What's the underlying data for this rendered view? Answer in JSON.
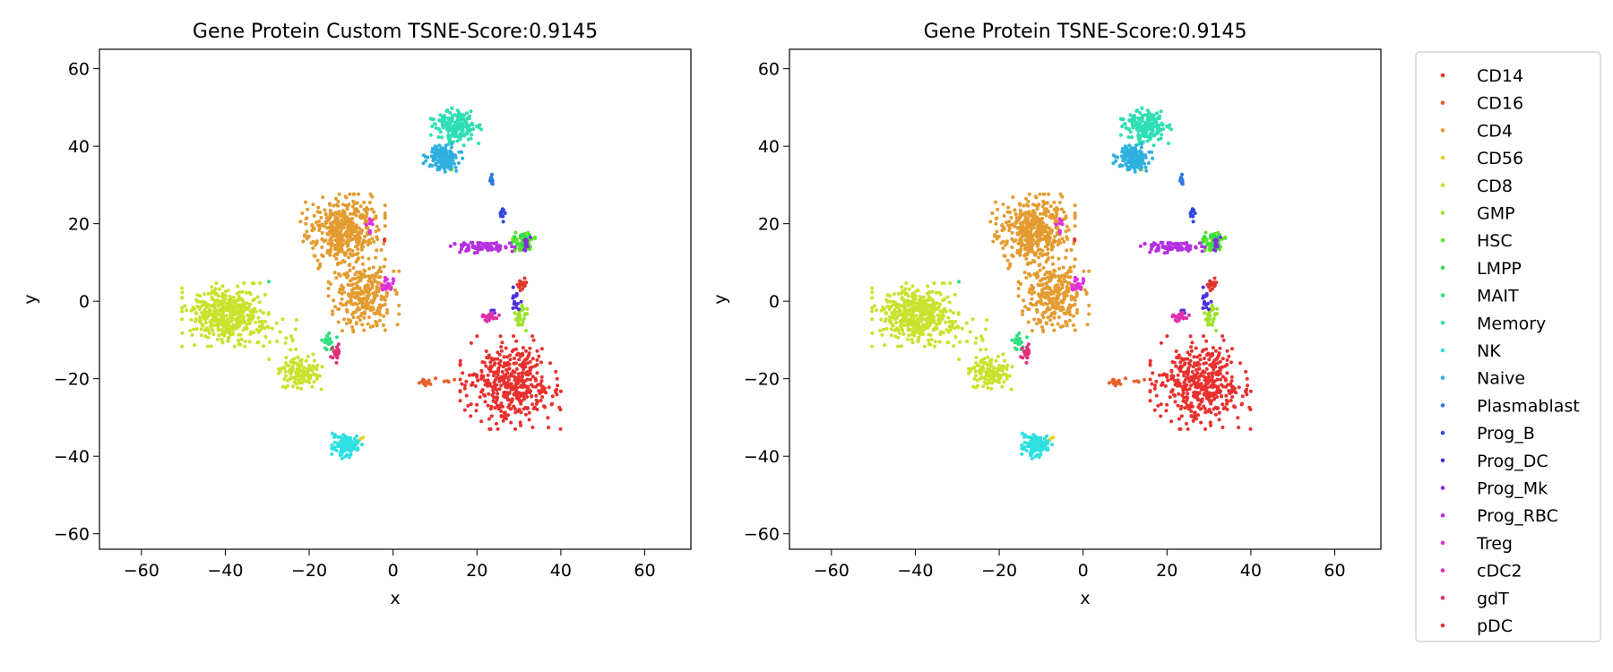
{
  "chart_data": [
    {
      "type": "scatter",
      "title": "Gene Protein Custom TSNE-Score:0.9145",
      "xlabel": "x",
      "ylabel": "y",
      "xlim": [
        -70,
        71
      ],
      "ylim": [
        -64,
        65
      ],
      "xticks": [
        -60,
        -40,
        -20,
        0,
        20,
        40,
        60
      ],
      "yticks": [
        -60,
        -40,
        -20,
        0,
        20,
        40,
        60
      ],
      "xtick_labels": [
        "−60",
        "−40",
        "−20",
        "0",
        "20",
        "40",
        "60"
      ],
      "ytick_labels": [
        "−60",
        "−40",
        "−20",
        "0",
        "20",
        "40",
        "60"
      ],
      "grid": false,
      "legend": "none"
    },
    {
      "type": "scatter",
      "title": "Gene Protein TSNE-Score:0.9145",
      "xlabel": "x",
      "ylabel": "y",
      "xlim": [
        -70,
        71
      ],
      "ylim": [
        -64,
        65
      ],
      "xticks": [
        -60,
        -40,
        -20,
        0,
        20,
        40,
        60
      ],
      "yticks": [
        -60,
        -40,
        -20,
        0,
        20,
        40,
        60
      ],
      "xtick_labels": [
        "−60",
        "−40",
        "−20",
        "0",
        "20",
        "40",
        "60"
      ],
      "ytick_labels": [
        "−60",
        "−40",
        "−20",
        "0",
        "20",
        "40",
        "60"
      ],
      "grid": false,
      "legend": "outside-right"
    }
  ],
  "series": [
    {
      "name": "CD14",
      "color": "#e8312f",
      "clusters": [
        {
          "cx": 28,
          "cy": -21,
          "sx": 5,
          "sy": 5,
          "n": 420
        },
        {
          "cx": 31,
          "cy": 4.5,
          "sx": 0.6,
          "sy": 0.6,
          "n": 8
        }
      ]
    },
    {
      "name": "CD16",
      "color": "#e6602e",
      "clusters": [
        {
          "cx": 8,
          "cy": -21,
          "sx": 0.8,
          "sy": 0.5,
          "n": 15
        },
        {
          "cx": 12,
          "cy": -20.5,
          "sx": 1.5,
          "sy": 0.4,
          "n": 5
        }
      ]
    },
    {
      "name": "CD4",
      "color": "#e39c31",
      "clusters": [
        {
          "cx": -12,
          "cy": 18,
          "sx": 4.2,
          "sy": 4,
          "n": 450
        },
        {
          "cx": -7,
          "cy": 1.5,
          "sx": 3.5,
          "sy": 4,
          "n": 300
        }
      ]
    },
    {
      "name": "CD56",
      "color": "#e3d32a",
      "clusters": [
        {
          "cx": -7.5,
          "cy": -35,
          "sx": 0.4,
          "sy": 0.4,
          "n": 3
        },
        {
          "cx": 14,
          "cy": 34,
          "sx": 0.4,
          "sy": 0.4,
          "n": 2
        }
      ]
    },
    {
      "name": "CD8",
      "color": "#c9e22d",
      "clusters": [
        {
          "cx": -40,
          "cy": -3.5,
          "sx": 4.3,
          "sy": 3.4,
          "n": 420
        },
        {
          "cx": -22,
          "cy": -18.5,
          "sx": 2.2,
          "sy": 2,
          "n": 130
        },
        {
          "cx": -28,
          "cy": -9,
          "sx": 3,
          "sy": 2.5,
          "n": 25
        }
      ]
    },
    {
      "name": "GMP",
      "color": "#9ee22e",
      "clusters": [
        {
          "cx": 30.5,
          "cy": -4,
          "sx": 0.8,
          "sy": 1.5,
          "n": 25
        }
      ]
    },
    {
      "name": "HSC",
      "color": "#60e02c",
      "clusters": [
        {
          "cx": 31,
          "cy": 15,
          "sx": 1.5,
          "sy": 1.2,
          "n": 60
        }
      ]
    },
    {
      "name": "LMPP",
      "color": "#2fdf4a",
      "clusters": [
        {
          "cx": 31,
          "cy": 16,
          "sx": 1.2,
          "sy": 1.2,
          "n": 20
        }
      ]
    },
    {
      "name": "MAIT",
      "color": "#2edf7f",
      "clusters": [
        {
          "cx": -15.5,
          "cy": -10.5,
          "sx": 0.9,
          "sy": 1.2,
          "n": 20
        },
        {
          "cx": -30,
          "cy": 5,
          "sx": 0.2,
          "sy": 0.2,
          "n": 1
        }
      ]
    },
    {
      "name": "Memory",
      "color": "#2fdfb3",
      "clusters": [
        {
          "cx": 15,
          "cy": 45,
          "sx": 2.5,
          "sy": 2,
          "n": 180
        }
      ]
    },
    {
      "name": "NK",
      "color": "#2fe0e1",
      "clusters": [
        {
          "cx": -11,
          "cy": -37,
          "sx": 1.5,
          "sy": 1.5,
          "n": 130
        }
      ]
    },
    {
      "name": "Naive",
      "color": "#2fb0df",
      "clusters": [
        {
          "cx": 12,
          "cy": 37,
          "sx": 2,
          "sy": 1.5,
          "n": 160
        }
      ]
    },
    {
      "name": "Plasmablast",
      "color": "#2f7be0",
      "clusters": [
        {
          "cx": 23.5,
          "cy": 31.5,
          "sx": 0.3,
          "sy": 0.8,
          "n": 12
        }
      ]
    },
    {
      "name": "Prog_B",
      "color": "#3047e0",
      "clusters": [
        {
          "cx": 26,
          "cy": 22.5,
          "sx": 0.3,
          "sy": 1,
          "n": 12
        }
      ]
    },
    {
      "name": "Prog_DC",
      "color": "#4b2fe0",
      "clusters": [
        {
          "cx": 29.5,
          "cy": 0,
          "sx": 0.6,
          "sy": 1.5,
          "n": 15
        },
        {
          "cx": 24,
          "cy": -3,
          "sx": 0.5,
          "sy": 0.5,
          "n": 5
        }
      ]
    },
    {
      "name": "Prog_Mk",
      "color": "#7f2fe0",
      "clusters": [
        {
          "cx": 32,
          "cy": 15,
          "sx": 0.5,
          "sy": 0.8,
          "n": 12
        }
      ]
    },
    {
      "name": "Prog_RBC",
      "color": "#b52fe0",
      "clusters": [
        {
          "cx": 21,
          "cy": 14,
          "sx": 3.5,
          "sy": 0.7,
          "n": 80
        }
      ]
    },
    {
      "name": "Treg",
      "color": "#e02fdf",
      "clusters": [
        {
          "cx": -1.5,
          "cy": 4,
          "sx": 0.8,
          "sy": 1,
          "n": 20
        },
        {
          "cx": -5.5,
          "cy": 20,
          "sx": 0.4,
          "sy": 1.5,
          "n": 8
        }
      ]
    },
    {
      "name": "cDC2",
      "color": "#e02fad",
      "clusters": [
        {
          "cx": 23,
          "cy": -4,
          "sx": 1,
          "sy": 0.5,
          "n": 20
        }
      ]
    },
    {
      "name": "gdT",
      "color": "#e02f77",
      "clusters": [
        {
          "cx": -13.5,
          "cy": -13.5,
          "sx": 0.7,
          "sy": 1,
          "n": 20
        }
      ]
    },
    {
      "name": "pDC",
      "color": "#e0352f",
      "clusters": [
        {
          "cx": 30.5,
          "cy": 4,
          "sx": 0.6,
          "sy": 0.6,
          "n": 10
        },
        {
          "cx": -2,
          "cy": 16,
          "sx": 0.3,
          "sy": 0.3,
          "n": 2
        }
      ]
    }
  ]
}
